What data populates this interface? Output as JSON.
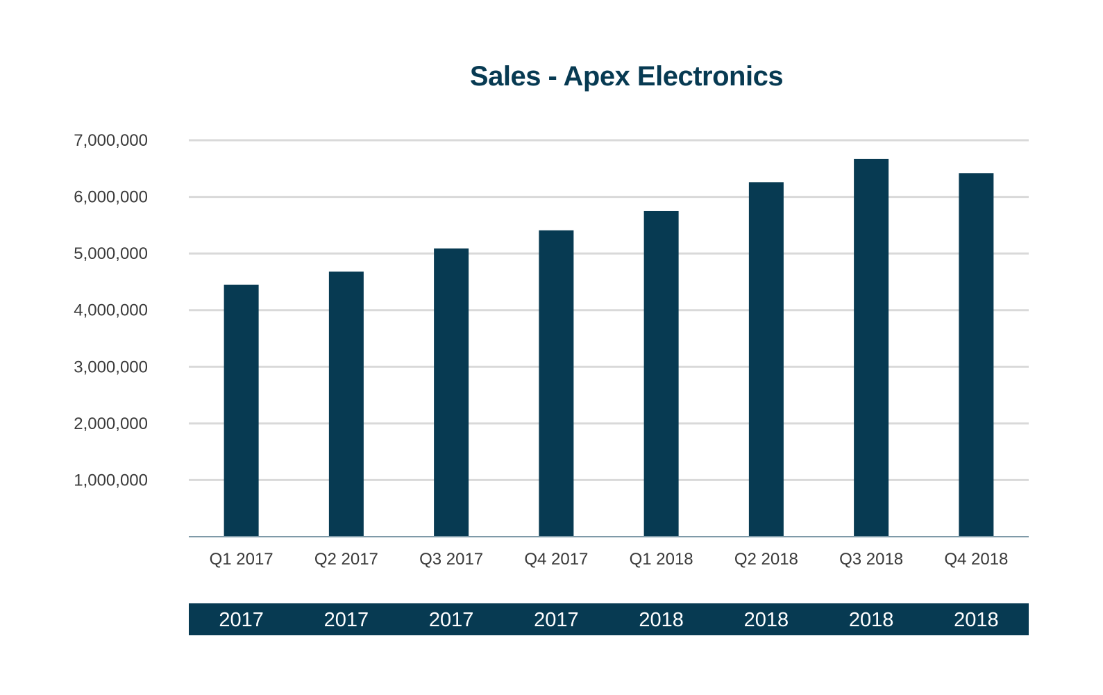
{
  "chart_data": {
    "type": "bar",
    "title": "Sales - Apex Electronics",
    "xlabel": "",
    "ylabel": "",
    "categories": [
      "Q1 2017",
      "Q2 2017",
      "Q3 2017",
      "Q4 2017",
      "Q1 2018",
      "Q2 2018",
      "Q3 2018",
      "Q4 2018"
    ],
    "group_labels": [
      "2017",
      "2017",
      "2017",
      "2017",
      "2018",
      "2018",
      "2018",
      "2018"
    ],
    "values": [
      4450000,
      4680000,
      5090000,
      5410000,
      5750000,
      6260000,
      6670000,
      6420000
    ],
    "ylim": [
      0,
      7000000
    ],
    "yticks": [
      1000000,
      2000000,
      3000000,
      4000000,
      5000000,
      6000000,
      7000000
    ],
    "ytick_labels": [
      "1,000,000",
      "2,000,000",
      "3,000,000",
      "4,000,000",
      "5,000,000",
      "6,000,000",
      "7,000,000"
    ],
    "grid": true,
    "legend": "none",
    "colors": {
      "bar": "#073a52",
      "grid": "#d9d9d9",
      "axis": "#7f9aa8",
      "title": "#073a52",
      "group_band": "#073a52"
    }
  }
}
